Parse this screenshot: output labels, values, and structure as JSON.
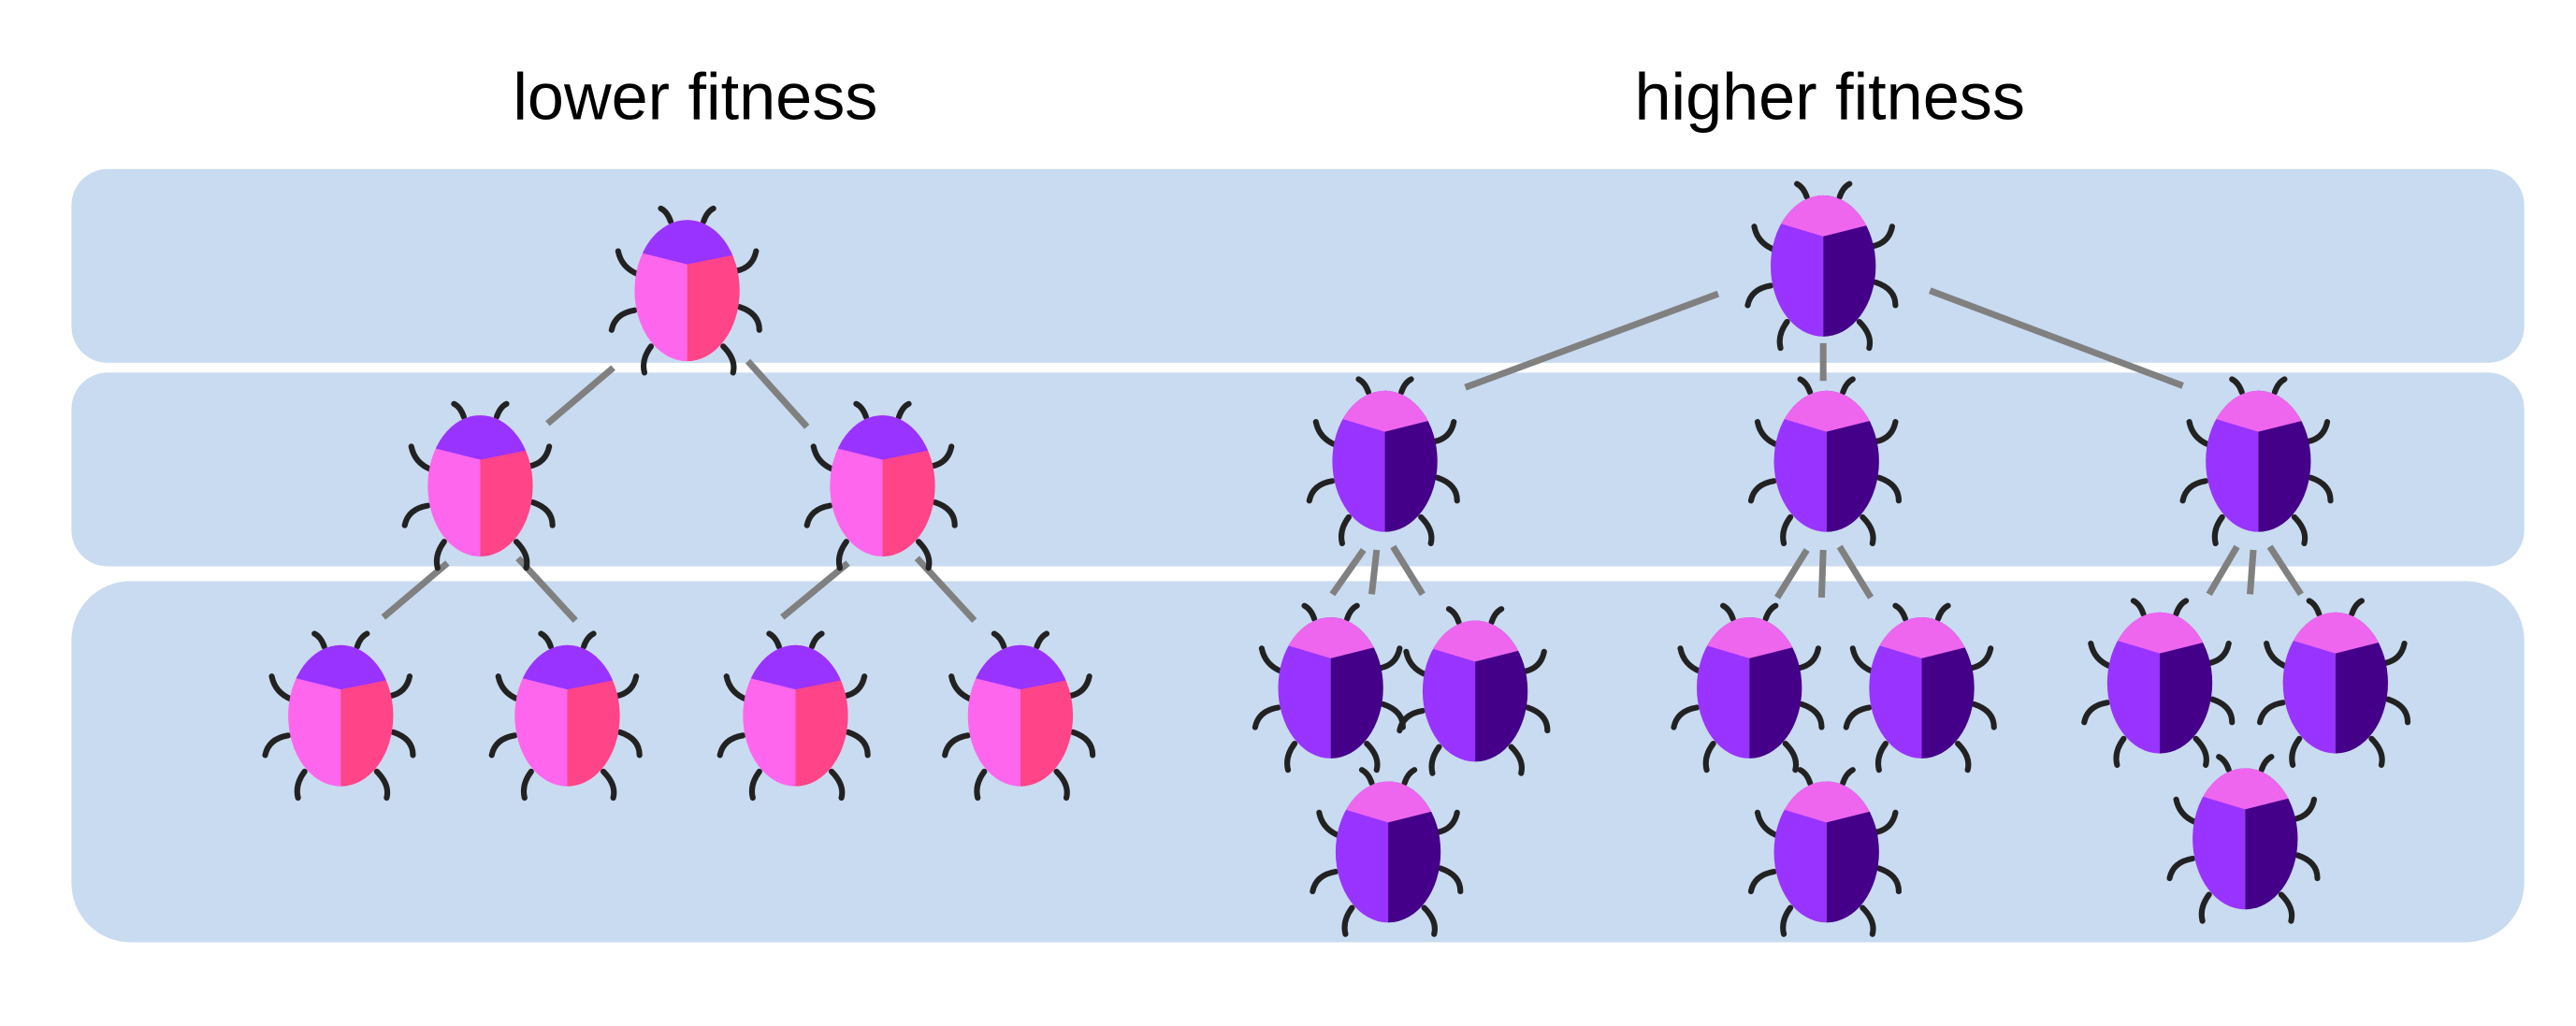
{
  "title_left": "lower fitness",
  "title_right": "higher fitness"
}
